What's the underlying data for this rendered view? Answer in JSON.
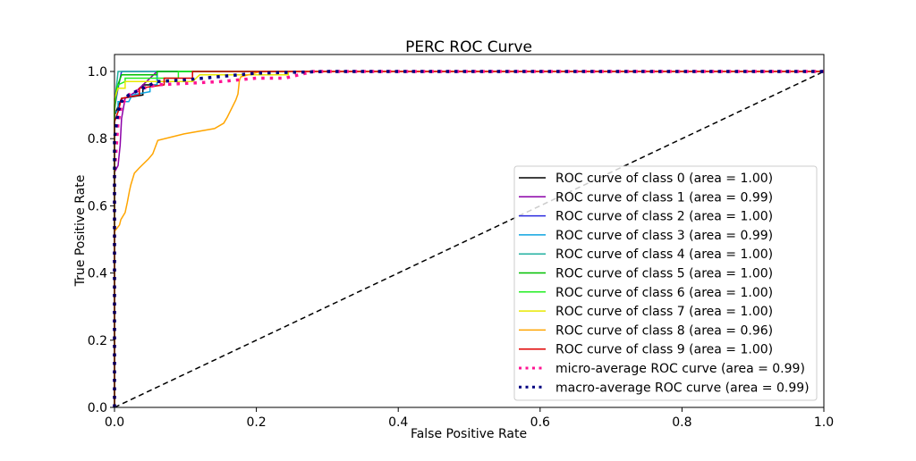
{
  "chart_data": {
    "type": "line",
    "title": "PERC ROC Curve",
    "xlabel": "False Positive Rate",
    "ylabel": "True Positive Rate",
    "xlim": [
      0.0,
      1.0
    ],
    "ylim": [
      0.0,
      1.05
    ],
    "xticks": [
      "0.0",
      "0.2",
      "0.4",
      "0.6",
      "0.8",
      "1.0"
    ],
    "yticks": [
      "0.0",
      "0.2",
      "0.4",
      "0.6",
      "0.8",
      "1.0"
    ],
    "grid": false,
    "legend_position": "lower-right",
    "chance_line": {
      "x": [
        0,
        1
      ],
      "y": [
        0,
        1
      ],
      "color": "#000000",
      "style": "dashed"
    },
    "series": [
      {
        "name": "ROC curve of class 0 (area = 1.00)",
        "color": "#000000",
        "style": "solid",
        "x": [
          0,
          0,
          0.01,
          0.04,
          0.04,
          0.06,
          0.06,
          1
        ],
        "y": [
          0,
          0.87,
          0.92,
          0.93,
          0.96,
          0.96,
          1.0,
          1.0
        ]
      },
      {
        "name": "ROC curve of class 1 (area = 0.99)",
        "color": "#8b00a8",
        "style": "solid",
        "x": [
          0,
          0,
          0.005,
          0.008,
          0.01,
          0.015,
          0.03,
          0.045,
          0.055,
          0.06,
          1
        ],
        "y": [
          0,
          0.7,
          0.72,
          0.78,
          0.86,
          0.92,
          0.94,
          0.97,
          0.99,
          1.0,
          1.0
        ]
      },
      {
        "name": "ROC curve of class 2 (area = 1.00)",
        "color": "#2a2ae0",
        "style": "solid",
        "x": [
          0,
          0,
          0.005,
          0.01,
          1
        ],
        "y": [
          0,
          0.89,
          0.95,
          1.0,
          1.0
        ]
      },
      {
        "name": "ROC curve of class 3 (area = 0.99)",
        "color": "#0ea5e0",
        "style": "solid",
        "x": [
          0,
          0,
          0.005,
          0.005,
          0.02,
          0.025,
          0.05,
          0.05,
          0.06,
          0.06,
          1
        ],
        "y": [
          0,
          0.88,
          0.88,
          0.91,
          0.91,
          0.93,
          0.94,
          0.96,
          0.96,
          1.0,
          1.0
        ]
      },
      {
        "name": "ROC curve of class 4 (area = 1.00)",
        "color": "#22b0a0",
        "style": "solid",
        "x": [
          0,
          0,
          0.005,
          1
        ],
        "y": [
          0,
          0.9,
          1.0,
          1.0
        ]
      },
      {
        "name": "ROC curve of class 5 (area = 1.00)",
        "color": "#00c000",
        "style": "solid",
        "x": [
          0,
          0,
          0.003,
          0.01,
          0.06,
          0.06,
          1
        ],
        "y": [
          0,
          0.88,
          0.95,
          0.99,
          0.99,
          1.0,
          1.0
        ]
      },
      {
        "name": "ROC curve of class 6 (area = 1.00)",
        "color": "#22ee22",
        "style": "solid",
        "x": [
          0,
          0,
          0.005,
          0.015,
          0.015,
          0.09,
          0.09,
          1
        ],
        "y": [
          0,
          0.9,
          0.96,
          0.97,
          0.98,
          0.98,
          1.0,
          1.0
        ]
      },
      {
        "name": "ROC curve of class 7 (area = 1.00)",
        "color": "#e8e800",
        "style": "solid",
        "x": [
          0,
          0,
          0.005,
          0.015,
          0.015,
          0.11,
          0.12,
          0.245,
          0.245,
          1
        ],
        "y": [
          0,
          0.92,
          0.95,
          0.95,
          0.97,
          0.97,
          0.99,
          0.99,
          1.0,
          1.0
        ]
      },
      {
        "name": "ROC curve of class 8 (area = 0.96)",
        "color": "#ffa500",
        "style": "solid",
        "x": [
          0,
          0,
          0,
          0.007,
          0.009,
          0.015,
          0.018,
          0.021,
          0.023,
          0.028,
          0.035,
          0.048,
          0.054,
          0.061,
          0.098,
          0.141,
          0.154,
          0.159,
          0.171,
          0.174,
          0.176,
          0.178,
          0.206,
          1
        ],
        "y": [
          0,
          0.255,
          0.524,
          0.543,
          0.559,
          0.58,
          0.61,
          0.644,
          0.662,
          0.697,
          0.713,
          0.74,
          0.755,
          0.795,
          0.814,
          0.83,
          0.846,
          0.864,
          0.915,
          0.933,
          0.973,
          0.984,
          1.0,
          1.0
        ]
      },
      {
        "name": "ROC curve of class 9 (area = 1.00)",
        "color": "#e00000",
        "style": "solid",
        "x": [
          0,
          0,
          0.005,
          0.01,
          0.035,
          0.035,
          0.07,
          0.07,
          0.11,
          0.11,
          1
        ],
        "y": [
          0,
          0.85,
          0.88,
          0.92,
          0.93,
          0.95,
          0.96,
          0.98,
          0.98,
          1.0,
          1.0
        ]
      },
      {
        "name": "micro-average ROC curve (area = 0.99)",
        "color": "#ff1493",
        "style": "dotted",
        "x": [
          0,
          0,
          0.005,
          0.01,
          0.02,
          0.04,
          0.06,
          0.15,
          0.2,
          0.24,
          0.28,
          1
        ],
        "y": [
          0,
          0.7,
          0.85,
          0.9,
          0.93,
          0.95,
          0.96,
          0.97,
          0.98,
          0.98,
          1.0,
          1.0
        ]
      },
      {
        "name": "macro-average ROC curve (area = 0.99)",
        "color": "#000080",
        "style": "dotted",
        "x": [
          0,
          0,
          0.005,
          0.01,
          0.02,
          0.04,
          0.06,
          0.1,
          0.15,
          0.2,
          0.3,
          1
        ],
        "y": [
          0,
          0.8,
          0.88,
          0.91,
          0.93,
          0.95,
          0.97,
          0.975,
          0.985,
          0.995,
          1.0,
          1.0
        ]
      }
    ]
  }
}
